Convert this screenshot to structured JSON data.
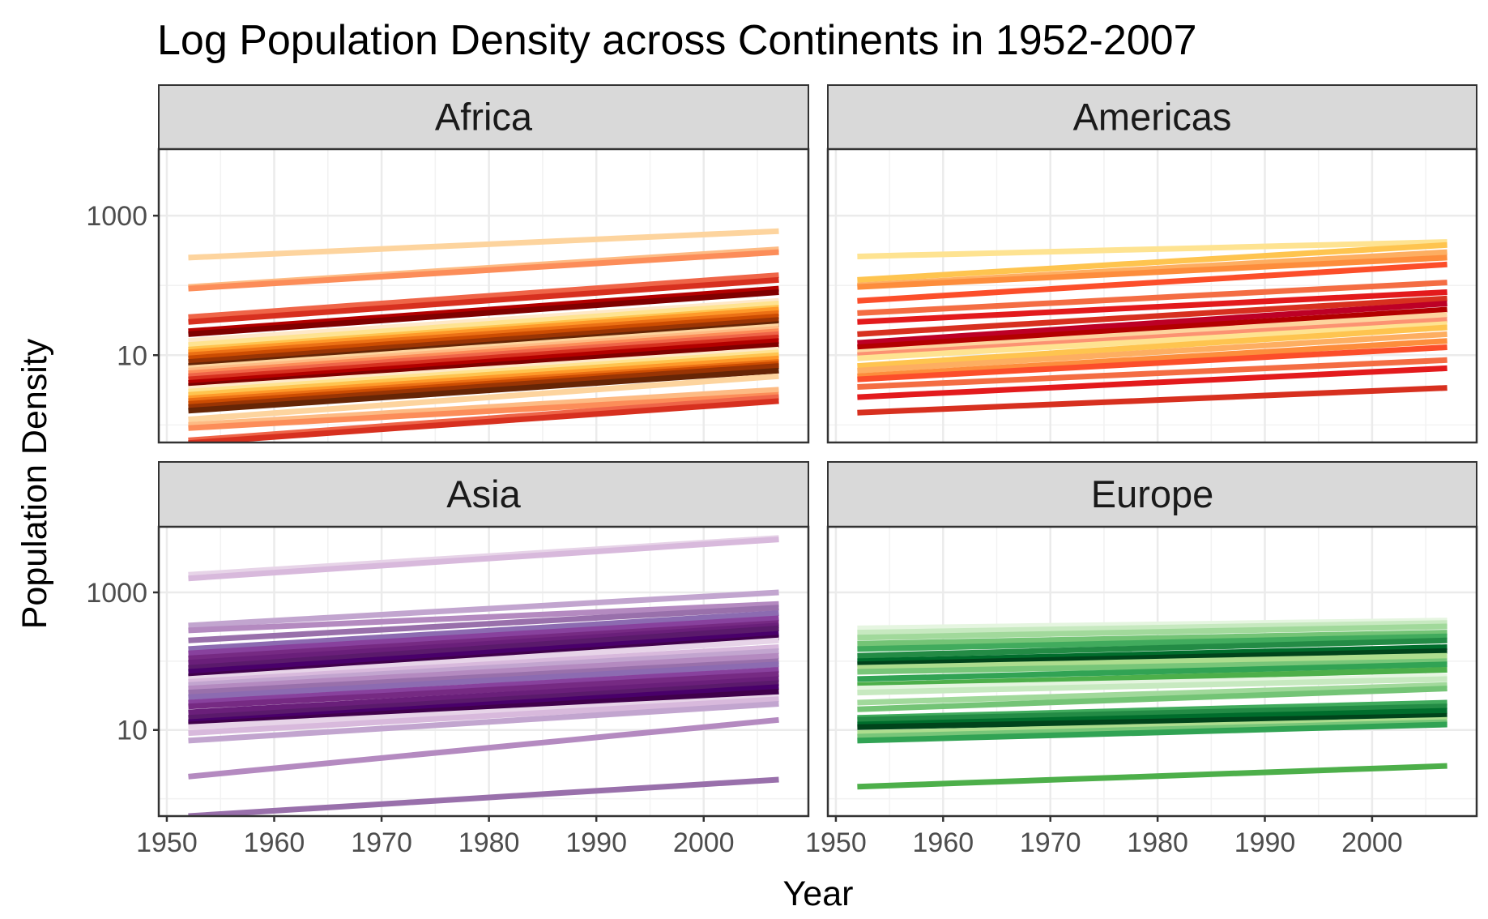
{
  "chart_data": {
    "type": "line",
    "title": "Log Population Density across Continents in 1952-2007",
    "xlabel": "Year",
    "ylabel": "Population Density",
    "yscale": "log10",
    "x": [
      1952,
      1957,
      1962,
      1967,
      1972,
      1977,
      1982,
      1987,
      1992,
      1997,
      2002,
      2007
    ],
    "xlim": [
      1949.25,
      2009.75
    ],
    "ylim": [
      0.56,
      9000
    ],
    "x_ticks": [
      "1950",
      "1960",
      "1970",
      "1980",
      "1990",
      "2000"
    ],
    "y_ticks": [
      "10",
      "1000"
    ],
    "grid": true,
    "legend": "none",
    "panels": [
      {
        "name": "Africa",
        "colors": [
          "#fdd49e",
          "#fdbb84",
          "#fc8d59",
          "#ef6548",
          "#d7301f",
          "#b30000",
          "#7f0000",
          "#fee8c8",
          "#fee391",
          "#fec44f",
          "#fe9929",
          "#ec7014",
          "#cc4c02",
          "#993404",
          "#662506"
        ],
        "series": [
          {
            "start": 250,
            "end": 600
          },
          {
            "start": 95,
            "end": 330
          },
          {
            "start": 90,
            "end": 300
          },
          {
            "start": 35,
            "end": 140
          },
          {
            "start": 30,
            "end": 120
          },
          {
            "start": 22,
            "end": 90
          },
          {
            "start": 20,
            "end": 80
          },
          {
            "start": 16,
            "end": 60
          },
          {
            "start": 14,
            "end": 55
          },
          {
            "start": 12,
            "end": 48
          },
          {
            "start": 11,
            "end": 45
          },
          {
            "start": 10,
            "end": 40
          },
          {
            "start": 9,
            "end": 36
          },
          {
            "start": 8,
            "end": 32
          },
          {
            "start": 7,
            "end": 28
          },
          {
            "start": 6.5,
            "end": 26
          },
          {
            "start": 6,
            "end": 24
          },
          {
            "start": 5.5,
            "end": 22
          },
          {
            "start": 5,
            "end": 20
          },
          {
            "start": 4.5,
            "end": 18
          },
          {
            "start": 4,
            "end": 16
          },
          {
            "start": 3.6,
            "end": 14
          },
          {
            "start": 3.3,
            "end": 12
          },
          {
            "start": 3,
            "end": 11
          },
          {
            "start": 2.7,
            "end": 10
          },
          {
            "start": 2.4,
            "end": 9
          },
          {
            "start": 2.2,
            "end": 8
          },
          {
            "start": 2,
            "end": 7.5
          },
          {
            "start": 1.8,
            "end": 7
          },
          {
            "start": 1.6,
            "end": 6
          },
          {
            "start": 1.2,
            "end": 5
          },
          {
            "start": 1.0,
            "end": 3.2
          },
          {
            "start": 0.9,
            "end": 2.7
          },
          {
            "start": 0.6,
            "end": 2.5
          },
          {
            "start": 0.55,
            "end": 2.2
          }
        ]
      },
      {
        "name": "Americas",
        "colors": [
          "#fee391",
          "#fec44f",
          "#fdae61",
          "#fd8d3c",
          "#fc4e2a",
          "#f46d43",
          "#e31a1c",
          "#d7301f",
          "#bd0026",
          "#b30000",
          "#fdd49e",
          "#fc9272"
        ],
        "series": [
          {
            "start": 260,
            "end": 420
          },
          {
            "start": 120,
            "end": 380
          },
          {
            "start": 100,
            "end": 300
          },
          {
            "start": 95,
            "end": 250
          },
          {
            "start": 60,
            "end": 200
          },
          {
            "start": 40,
            "end": 110
          },
          {
            "start": 30,
            "end": 80
          },
          {
            "start": 20,
            "end": 65
          },
          {
            "start": 15,
            "end": 55
          },
          {
            "start": 13,
            "end": 45
          },
          {
            "start": 11,
            "end": 38
          },
          {
            "start": 10,
            "end": 32
          },
          {
            "start": 9,
            "end": 28
          },
          {
            "start": 7,
            "end": 25
          },
          {
            "start": 6,
            "end": 20
          },
          {
            "start": 5,
            "end": 16
          },
          {
            "start": 4.5,
            "end": 13
          },
          {
            "start": 3.5,
            "end": 8.5
          },
          {
            "start": 2.5,
            "end": 6.5
          },
          {
            "start": 1.5,
            "end": 3.4
          }
        ]
      },
      {
        "name": "Asia",
        "colors": [
          "#e7d4e8",
          "#d8b9dc",
          "#c2a5cf",
          "#b48ac0",
          "#9970ab",
          "#8c6bb1",
          "#88419d",
          "#762a83",
          "#6a1f7a",
          "#5a1a6b",
          "#49006a",
          "#40004b"
        ],
        "series": [
          {
            "start": 1800,
            "end": 6200
          },
          {
            "start": 1600,
            "end": 5900
          },
          {
            "start": 330,
            "end": 1000
          },
          {
            "start": 280,
            "end": 680
          },
          {
            "start": 200,
            "end": 600
          },
          {
            "start": 150,
            "end": 500
          },
          {
            "start": 130,
            "end": 420
          },
          {
            "start": 110,
            "end": 360
          },
          {
            "start": 95,
            "end": 330
          },
          {
            "start": 80,
            "end": 300
          },
          {
            "start": 70,
            "end": 250
          },
          {
            "start": 60,
            "end": 220
          },
          {
            "start": 55,
            "end": 200
          },
          {
            "start": 50,
            "end": 160
          },
          {
            "start": 45,
            "end": 140
          },
          {
            "start": 40,
            "end": 120
          },
          {
            "start": 35,
            "end": 100
          },
          {
            "start": 30,
            "end": 90
          },
          {
            "start": 25,
            "end": 75
          },
          {
            "start": 22,
            "end": 65
          },
          {
            "start": 18,
            "end": 55
          },
          {
            "start": 15,
            "end": 48
          },
          {
            "start": 13,
            "end": 42
          },
          {
            "start": 12,
            "end": 36
          },
          {
            "start": 11,
            "end": 30
          },
          {
            "start": 9,
            "end": 28
          },
          {
            "start": 7,
            "end": 24
          },
          {
            "start": 2.1,
            "end": 14
          },
          {
            "start": 0.56,
            "end": 1.9
          }
        ]
      },
      {
        "name": "Europe",
        "colors": [
          "#e5f5e0",
          "#c7e9c0",
          "#a1d99b",
          "#74c476",
          "#41ab5d",
          "#238b45",
          "#006d2c",
          "#00441b",
          "#addd8e",
          "#78c679",
          "#31a354",
          "#4daf4a"
        ],
        "series": [
          {
            "start": 300,
            "end": 390
          },
          {
            "start": 260,
            "end": 360
          },
          {
            "start": 220,
            "end": 320
          },
          {
            "start": 180,
            "end": 260
          },
          {
            "start": 150,
            "end": 230
          },
          {
            "start": 120,
            "end": 200
          },
          {
            "start": 100,
            "end": 160
          },
          {
            "start": 90,
            "end": 140
          },
          {
            "start": 80,
            "end": 120
          },
          {
            "start": 70,
            "end": 100
          },
          {
            "start": 55,
            "end": 90
          },
          {
            "start": 45,
            "end": 75
          },
          {
            "start": 40,
            "end": 60
          },
          {
            "start": 35,
            "end": 55
          },
          {
            "start": 25,
            "end": 45
          },
          {
            "start": 20,
            "end": 40
          },
          {
            "start": 15,
            "end": 25
          },
          {
            "start": 14,
            "end": 22
          },
          {
            "start": 12,
            "end": 19
          },
          {
            "start": 11,
            "end": 16
          },
          {
            "start": 9,
            "end": 14
          },
          {
            "start": 8,
            "end": 13
          },
          {
            "start": 7,
            "end": 12
          },
          {
            "start": 1.5,
            "end": 3
          }
        ]
      }
    ]
  }
}
